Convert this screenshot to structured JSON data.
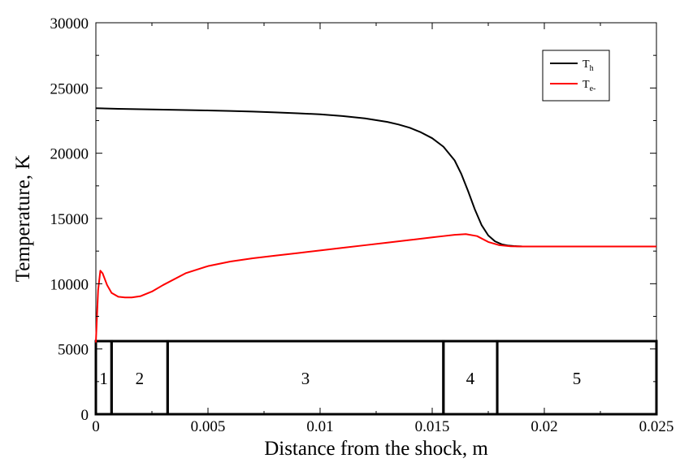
{
  "chart_data": {
    "type": "line",
    "title": "",
    "xlabel": "Distance from the shock, m",
    "ylabel": "Temperature, K",
    "xlim": [
      0,
      0.025
    ],
    "ylim": [
      0,
      30000
    ],
    "grid": false,
    "legend_position": "top-right",
    "x_ticks": [
      0,
      0.005,
      0.01,
      0.015,
      0.02,
      0.025
    ],
    "x_tick_labels": [
      "0",
      "0.005",
      "0.01",
      "0.015",
      "0.02",
      "0.025"
    ],
    "y_ticks": [
      0,
      5000,
      10000,
      15000,
      20000,
      25000,
      30000
    ],
    "y_tick_labels": [
      "0",
      "5000",
      "10000",
      "15000",
      "20000",
      "25000",
      "30000"
    ],
    "series": [
      {
        "name": "Th",
        "legend_main": "T",
        "legend_sub": "h",
        "color": "#000000",
        "x": [
          0,
          0.001,
          0.002,
          0.003,
          0.004,
          0.005,
          0.006,
          0.007,
          0.008,
          0.009,
          0.01,
          0.011,
          0.012,
          0.013,
          0.0135,
          0.014,
          0.0145,
          0.015,
          0.0155,
          0.016,
          0.0163,
          0.0166,
          0.0169,
          0.0172,
          0.0175,
          0.0178,
          0.0181,
          0.0184,
          0.0187,
          0.019,
          0.0195,
          0.02,
          0.021,
          0.022,
          0.023,
          0.024,
          0.025
        ],
        "y": [
          23450,
          23400,
          23370,
          23340,
          23310,
          23280,
          23240,
          23190,
          23130,
          23060,
          22980,
          22850,
          22670,
          22400,
          22200,
          21950,
          21600,
          21150,
          20500,
          19450,
          18400,
          17100,
          15700,
          14500,
          13700,
          13250,
          13020,
          12920,
          12880,
          12860,
          12850,
          12850,
          12850,
          12850,
          12850,
          12850,
          12850
        ]
      },
      {
        "name": "Te-",
        "legend_main": "T",
        "legend_sub": "e-",
        "color": "#ff0000",
        "x": [
          0,
          0.0001,
          0.0002,
          0.0003,
          0.0005,
          0.0007,
          0.001,
          0.0013,
          0.0016,
          0.002,
          0.0025,
          0.003,
          0.004,
          0.005,
          0.006,
          0.007,
          0.008,
          0.009,
          0.01,
          0.011,
          0.012,
          0.013,
          0.014,
          0.015,
          0.0155,
          0.016,
          0.0165,
          0.017,
          0.0175,
          0.018,
          0.0185,
          0.019,
          0.02,
          0.021,
          0.022,
          0.023,
          0.024,
          0.025
        ],
        "y": [
          5500,
          9500,
          11000,
          10800,
          9900,
          9300,
          9000,
          8950,
          8950,
          9050,
          9400,
          9900,
          10800,
          11350,
          11700,
          11950,
          12150,
          12350,
          12550,
          12750,
          12950,
          13150,
          13350,
          13550,
          13650,
          13750,
          13800,
          13650,
          13200,
          12950,
          12870,
          12850,
          12850,
          12850,
          12850,
          12850,
          12850,
          12850
        ]
      }
    ],
    "regions": {
      "y_top": 5600,
      "boundaries": [
        0,
        0.0007,
        0.0032,
        0.0155,
        0.0179,
        0.025
      ],
      "labels": [
        "1",
        "2",
        "3",
        "4",
        "5"
      ]
    }
  }
}
